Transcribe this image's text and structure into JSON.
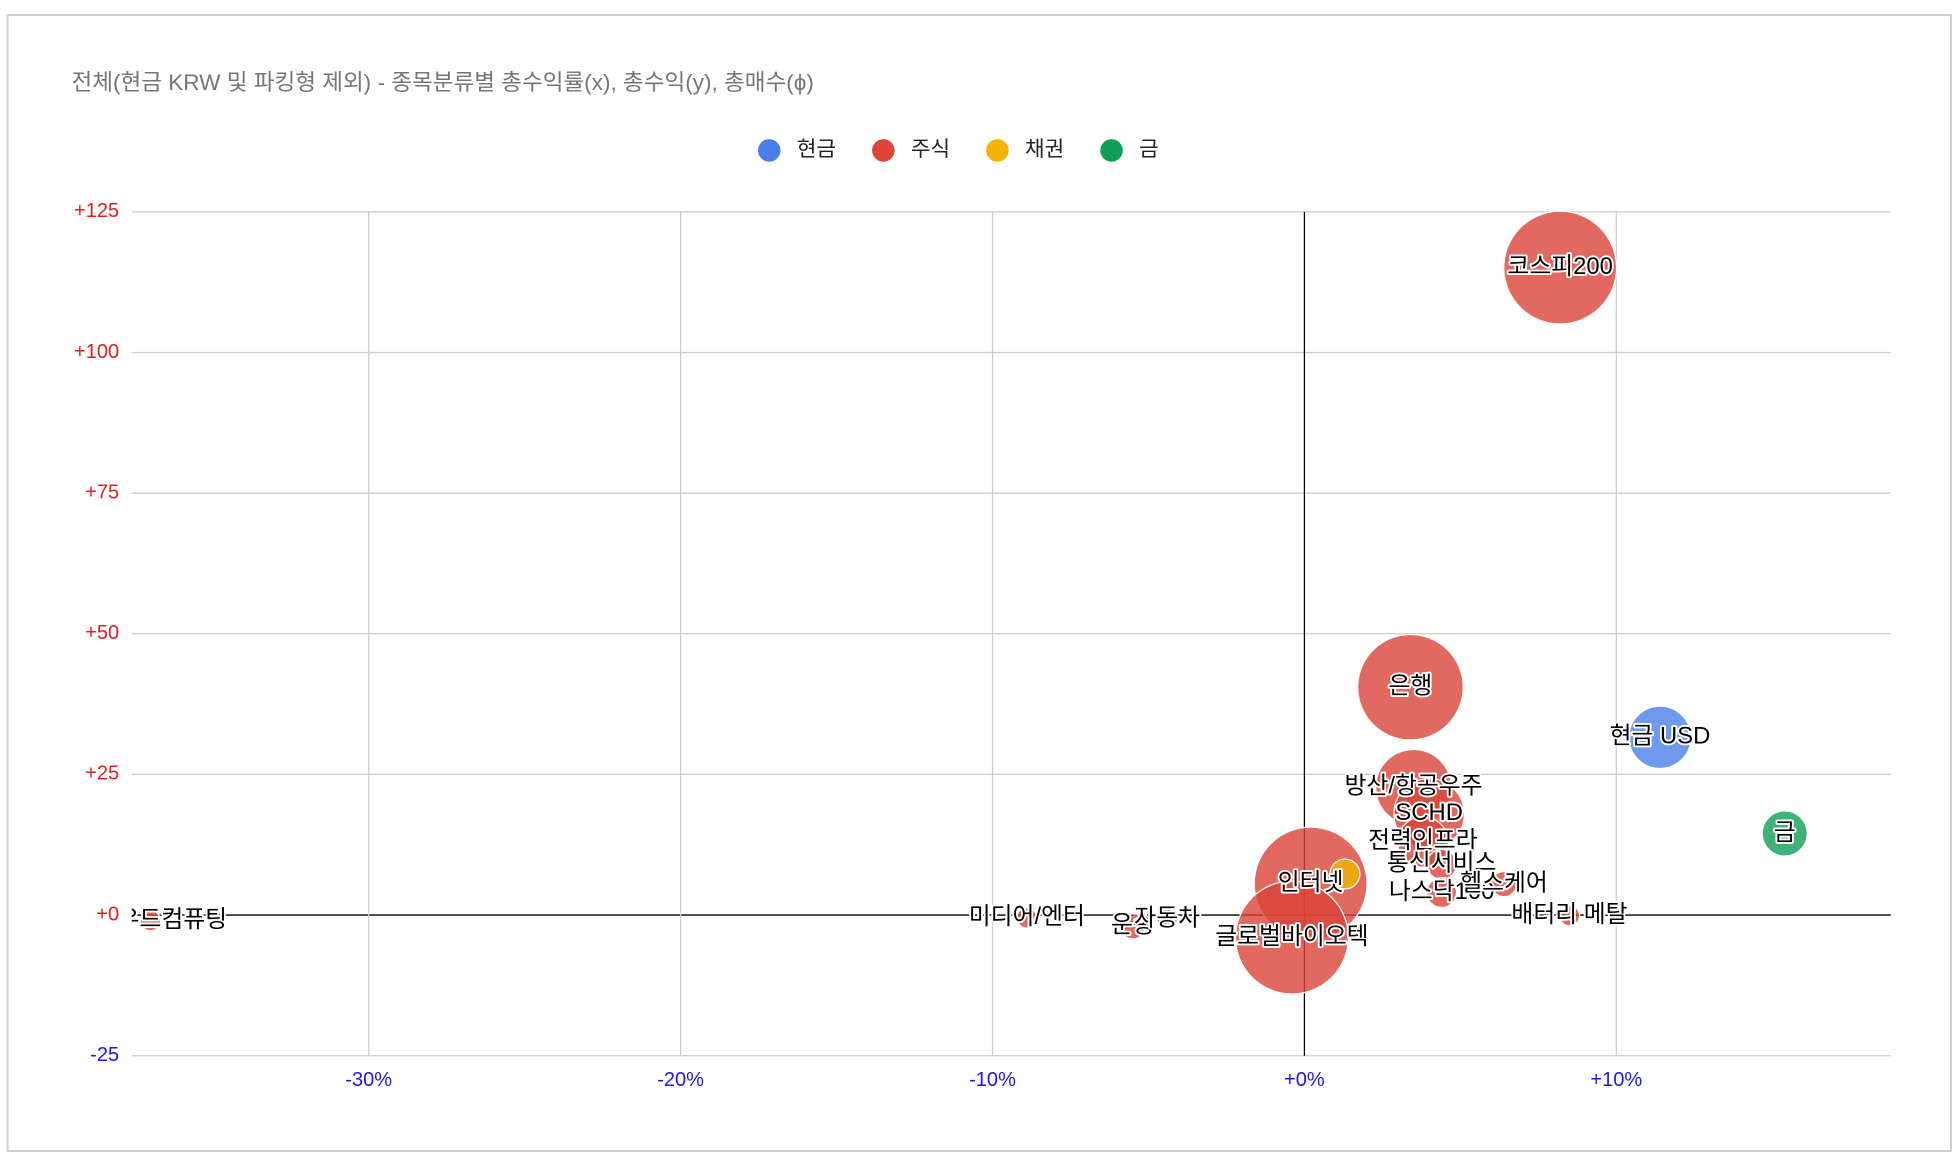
{
  "chart_data": {
    "type": "bubble",
    "title": "전체(현금 KRW 및 파킹형 제외) - 종목분류별 총수익률(x), 총수익(y), 총매수(ϕ)",
    "xlim": [
      -37.6,
      18.8
    ],
    "ylim": [
      -25,
      125
    ],
    "xticks": [
      {
        "value": -30,
        "label": "-30%"
      },
      {
        "value": -20,
        "label": "-20%"
      },
      {
        "value": -10,
        "label": "-10%"
      },
      {
        "value": 0,
        "label": "+0%"
      },
      {
        "value": 10,
        "label": "+10%"
      }
    ],
    "yticks": [
      {
        "value": -25,
        "label": "-25"
      },
      {
        "value": 0,
        "label": "+0"
      },
      {
        "value": 25,
        "label": "+25"
      },
      {
        "value": 50,
        "label": "+50"
      },
      {
        "value": 75,
        "label": "+75"
      },
      {
        "value": 100,
        "label": "+100"
      },
      {
        "value": 125,
        "label": "+125"
      }
    ],
    "grid": true,
    "legend": "top",
    "xtick_color": "#1a1ae6",
    "ytick_color_positive": "#e02020",
    "ytick_color_negative": "#1a1ae6",
    "series": [
      {
        "name": "현금",
        "color": "#4a7fe8",
        "names": [
          "현금 USD"
        ],
        "x": [
          11.4
        ],
        "y": [
          31.6
        ],
        "size": [
          610
        ]
      },
      {
        "name": "주식",
        "color": "#db4437",
        "names": [
          "코스피200",
          "은행",
          "방산/항공우주",
          "SCHD",
          "전력인프라",
          "통신서비스",
          "나스닥100",
          "헬스케어",
          "인터넷",
          "글로벌바이오텍",
          "배터리 메탈",
          "미디어/엔터",
          "운송",
          "자동차",
          "클라우드컴퓨팅"
        ],
        "x": [
          8.2,
          3.4,
          3.5,
          4.0,
          3.8,
          4.4,
          4.4,
          6.4,
          0.2,
          -0.4,
          8.5,
          -8.9,
          -5.5,
          -4.4,
          -37.0
        ],
        "y": [
          115.1,
          40.5,
          22.7,
          18.0,
          13.0,
          9.0,
          4.0,
          5.5,
          5.6,
          -4.0,
          -0.1,
          -0.5,
          -2.0,
          -0.7,
          -1.0
        ],
        "size": [
          2000,
          1750,
          900,
          780,
          400,
          140,
          140,
          100,
          2000,
          2000,
          64,
          64,
          100,
          64,
          64
        ]
      },
      {
        "name": "채권",
        "color": "#f4b400",
        "names": [
          null
        ],
        "x": [
          1.3
        ],
        "y": [
          7.3
        ],
        "size": [
          140
        ]
      },
      {
        "name": "금",
        "color": "#0f9d58",
        "names": [
          "금"
        ],
        "x": [
          15.4
        ],
        "y": [
          14.5
        ],
        "size": [
          320
        ]
      }
    ]
  }
}
